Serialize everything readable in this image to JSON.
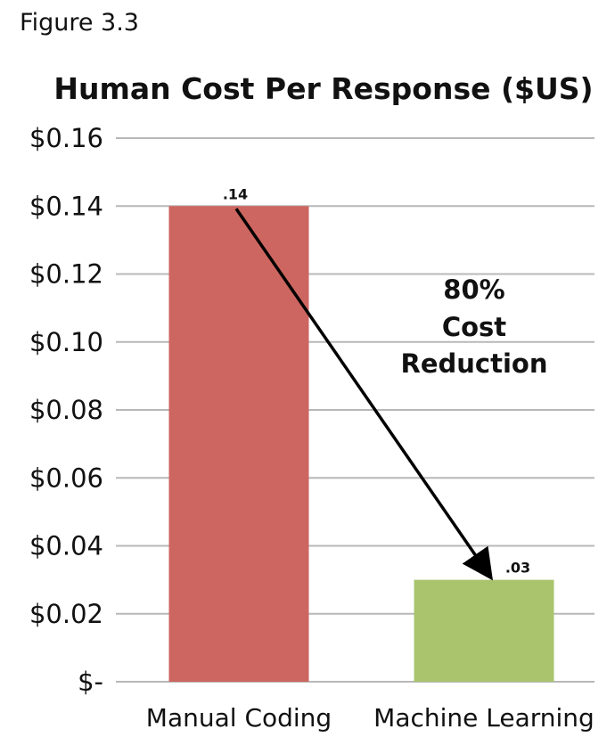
{
  "figure_label": "Figure 3.3",
  "colors": {
    "manual_bar": "#cd6660",
    "machine_bar": "#a9c46c",
    "grid": "#b8b8b8",
    "arrow": "#000000"
  },
  "chart_data": {
    "type": "bar",
    "title": "Human Cost Per Response ($US)",
    "xlabel": "",
    "ylabel": "",
    "categories": [
      "Manual Coding",
      "Machine Learning"
    ],
    "values": [
      0.14,
      0.03
    ],
    "data_labels": [
      ".14",
      ".03"
    ],
    "ylim": [
      0,
      0.16
    ],
    "yticks": [
      0,
      0.02,
      0.04,
      0.06,
      0.08,
      0.1,
      0.12,
      0.14,
      0.16
    ],
    "ytick_labels": [
      "$-",
      "$0.02",
      "$0.04",
      "$0.06",
      "$0.08",
      "$0.10",
      "$0.12",
      "$0.14",
      "$0.16"
    ],
    "grid": true,
    "legend": "none",
    "annotation": {
      "lines": [
        "80%",
        "Cost",
        "Reduction"
      ],
      "arrow_from": {
        "category": "Manual Coding",
        "value": 0.14
      },
      "arrow_to": {
        "category": "Machine Learning",
        "value": 0.03
      }
    }
  }
}
